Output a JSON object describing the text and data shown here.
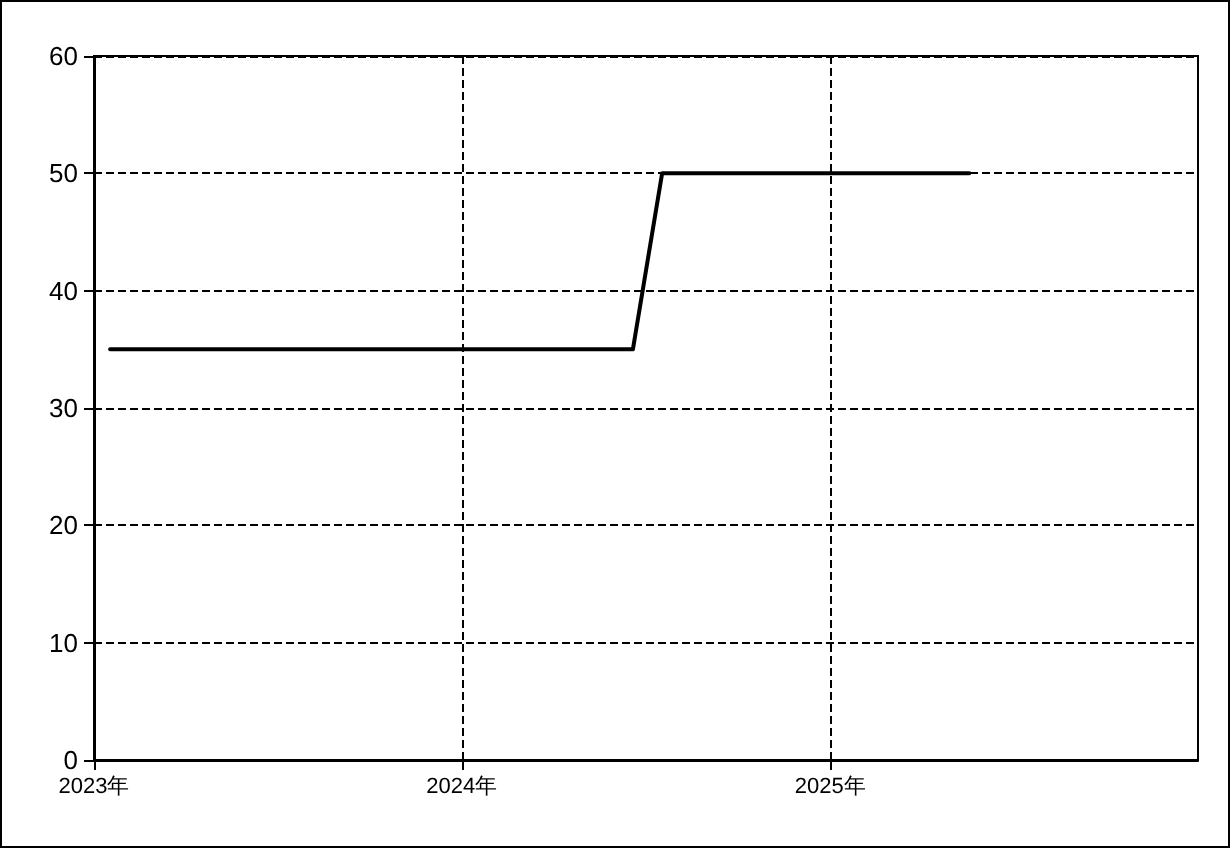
{
  "chart_data": {
    "type": "line",
    "x": [
      "2023-01-17",
      "2024-06-19",
      "2024-07-18",
      "2025-05-19"
    ],
    "series": [
      {
        "color": "#000000",
        "values": [
          35,
          35,
          50,
          50
        ]
      }
    ],
    "xlim": [
      "2023-01-01",
      "2026-01-01"
    ],
    "xticks": [
      {
        "value": "2023",
        "label": "2023年"
      },
      {
        "value": "2024",
        "label": "2024年"
      },
      {
        "value": "2025",
        "label": "2025年"
      }
    ],
    "ylim": [
      0,
      60
    ],
    "yticks": [
      0,
      10,
      20,
      30,
      40,
      50,
      60
    ],
    "grid": true,
    "marker": "none",
    "line_style": "solid"
  }
}
